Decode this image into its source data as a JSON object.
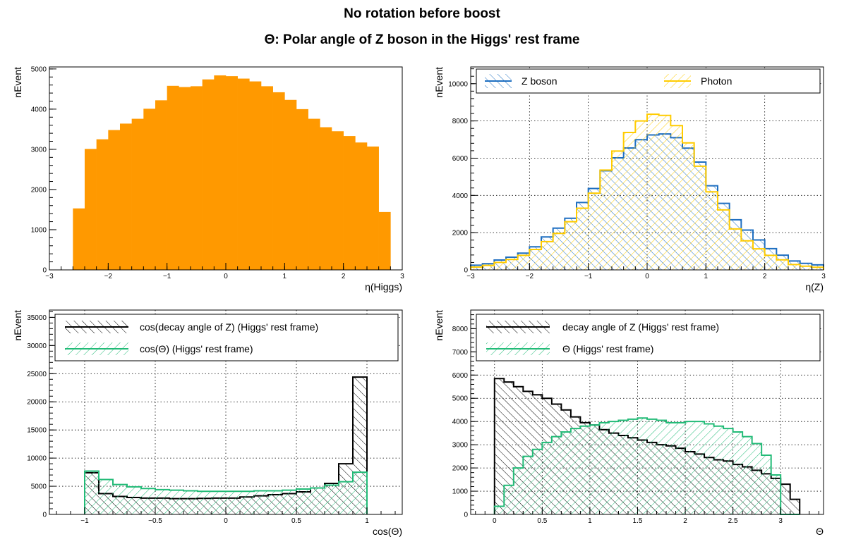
{
  "title": "No rotation before boost",
  "subtitle": "Θ: Polar angle of Z boson in the Higgs' rest frame",
  "chart_data": [
    {
      "type": "histogram",
      "xlabel": "η(Higgs)",
      "ylabel": "nEvent",
      "xlim": [
        -3,
        3
      ],
      "ylim": [
        0,
        5050
      ],
      "xticks": [
        -3,
        -2,
        -1,
        0,
        1,
        2,
        3
      ],
      "yticks": [
        0,
        1000,
        2000,
        3000,
        4000,
        5000
      ],
      "grid": false,
      "series": [
        {
          "color": "#ff9900",
          "style": "filled",
          "edges": [
            -3,
            -2.8,
            -2.6,
            -2.4,
            -2.2,
            -2.0,
            -1.8,
            -1.6,
            -1.4,
            -1.2,
            -1.0,
            -0.8,
            -0.6,
            -0.4,
            -0.2,
            0,
            0.2,
            0.4,
            0.6,
            0.8,
            1.0,
            1.2,
            1.4,
            1.6,
            1.8,
            2.0,
            2.2,
            2.4,
            2.6,
            2.8,
            3.0
          ],
          "values": [
            0,
            0,
            1530,
            3010,
            3250,
            3480,
            3640,
            3760,
            4010,
            4220,
            4580,
            4550,
            4570,
            4740,
            4840,
            4820,
            4760,
            4690,
            4570,
            4420,
            4230,
            4000,
            3760,
            3550,
            3450,
            3330,
            3170,
            3070,
            1440,
            0
          ]
        }
      ]
    },
    {
      "type": "histogram",
      "xlabel": "η(Z)",
      "ylabel": "nEvent",
      "xlim": [
        -3,
        3
      ],
      "ylim": [
        0,
        10900
      ],
      "xticks": [
        -3,
        -2,
        -1,
        0,
        1,
        2,
        3
      ],
      "yticks": [
        0,
        2000,
        4000,
        6000,
        8000,
        10000
      ],
      "grid": true,
      "legend": "top",
      "series": [
        {
          "name": "Z boson",
          "color": "#1f6fc1",
          "edges": [
            -3,
            -2.8,
            -2.6,
            -2.4,
            -2.2,
            -2.0,
            -1.8,
            -1.6,
            -1.4,
            -1.2,
            -1.0,
            -0.8,
            -0.6,
            -0.4,
            -0.2,
            0,
            0.2,
            0.4,
            0.6,
            0.8,
            1.0,
            1.2,
            1.4,
            1.6,
            1.8,
            2.0,
            2.2,
            2.4,
            2.6,
            2.8,
            3.0
          ],
          "values": [
            250,
            330,
            530,
            680,
            900,
            1240,
            1770,
            2240,
            2770,
            3620,
            4370,
            5320,
            6020,
            6550,
            6990,
            7250,
            7300,
            7100,
            6540,
            5790,
            4520,
            3570,
            2690,
            2140,
            1610,
            1140,
            790,
            480,
            350,
            270
          ]
        },
        {
          "name": "Photon",
          "color": "#ffcc00",
          "edges": [
            -3,
            -2.8,
            -2.6,
            -2.4,
            -2.2,
            -2.0,
            -1.8,
            -1.6,
            -1.4,
            -1.2,
            -1.0,
            -0.8,
            -0.6,
            -0.4,
            -0.2,
            0,
            0.2,
            0.4,
            0.6,
            0.8,
            1.0,
            1.2,
            1.4,
            1.6,
            1.8,
            2.0,
            2.2,
            2.4,
            2.6,
            2.8,
            3.0
          ],
          "values": [
            150,
            240,
            400,
            560,
            780,
            1100,
            1520,
            1960,
            2590,
            3310,
            4120,
            5360,
            6380,
            7380,
            8000,
            8360,
            8300,
            7750,
            6820,
            5570,
            4190,
            3220,
            2200,
            1560,
            1130,
            780,
            540,
            290,
            200,
            140
          ]
        }
      ]
    },
    {
      "type": "histogram",
      "xlabel": "cos(Θ)",
      "ylabel": "nEvent",
      "xlim": [
        -1.25,
        1.25
      ],
      "ylim": [
        0,
        36300
      ],
      "xticks": [
        -1,
        -0.5,
        0,
        0.5,
        1
      ],
      "yticks": [
        0,
        5000,
        10000,
        15000,
        20000,
        25000,
        30000,
        35000
      ],
      "grid": true,
      "legend": "top",
      "series": [
        {
          "name": "cos(decay angle of Z) (Higgs' rest frame)",
          "color": "#000000",
          "edges": [
            -1.0,
            -0.9,
            -0.8,
            -0.7,
            -0.6,
            -0.5,
            -0.4,
            -0.3,
            -0.2,
            -0.1,
            0.0,
            0.1,
            0.2,
            0.3,
            0.4,
            0.5,
            0.6,
            0.7,
            0.8,
            0.9,
            1.0
          ],
          "values": [
            7400,
            3700,
            3200,
            3000,
            2900,
            2900,
            2800,
            2800,
            2850,
            2900,
            2900,
            3100,
            3300,
            3500,
            3700,
            4000,
            4700,
            5500,
            9000,
            24400
          ]
        },
        {
          "name": "cos(Θ) (Higgs' rest frame)",
          "color": "#22bb77",
          "edges": [
            -1.0,
            -0.9,
            -0.8,
            -0.7,
            -0.6,
            -0.5,
            -0.4,
            -0.3,
            -0.2,
            -0.1,
            0.0,
            0.1,
            0.2,
            0.3,
            0.4,
            0.5,
            0.6,
            0.7,
            0.8,
            0.9,
            1.0
          ],
          "values": [
            7700,
            6200,
            5300,
            4900,
            4600,
            4400,
            4300,
            4200,
            4100,
            4100,
            4100,
            4100,
            4200,
            4200,
            4300,
            4500,
            4700,
            5200,
            5800,
            7500
          ]
        }
      ]
    },
    {
      "type": "histogram",
      "xlabel": "Θ",
      "ylabel": "nEvent",
      "xlim": [
        -0.25,
        3.45
      ],
      "ylim": [
        0,
        8800
      ],
      "xticks": [
        0,
        0.5,
        1,
        1.5,
        2,
        2.5,
        3
      ],
      "yticks": [
        0,
        1000,
        2000,
        3000,
        4000,
        5000,
        6000,
        7000,
        8000
      ],
      "grid": true,
      "legend": "top",
      "series": [
        {
          "name": "decay angle of Z (Higgs' rest frame)",
          "color": "#000000",
          "edges": [
            0,
            0.1,
            0.2,
            0.3,
            0.4,
            0.5,
            0.6,
            0.7,
            0.8,
            0.9,
            1.0,
            1.1,
            1.2,
            1.3,
            1.4,
            1.5,
            1.6,
            1.7,
            1.8,
            1.9,
            2.0,
            2.1,
            2.2,
            2.3,
            2.4,
            2.5,
            2.6,
            2.7,
            2.8,
            2.9,
            3.0,
            3.1,
            3.2
          ],
          "values": [
            5850,
            5700,
            5500,
            5300,
            5150,
            5000,
            4750,
            4500,
            4200,
            3950,
            3850,
            3650,
            3500,
            3400,
            3300,
            3200,
            3100,
            3000,
            2950,
            2850,
            2700,
            2600,
            2450,
            2350,
            2300,
            2150,
            2050,
            1900,
            1750,
            1550,
            1300,
            650
          ]
        },
        {
          "name": "Θ (Higgs' rest frame)",
          "color": "#22bb77",
          "edges": [
            0,
            0.1,
            0.2,
            0.3,
            0.4,
            0.5,
            0.6,
            0.7,
            0.8,
            0.9,
            1.0,
            1.1,
            1.2,
            1.3,
            1.4,
            1.5,
            1.6,
            1.7,
            1.8,
            1.9,
            2.0,
            2.1,
            2.2,
            2.3,
            2.4,
            2.5,
            2.6,
            2.7,
            2.8,
            2.9,
            3.0,
            3.1,
            3.2
          ],
          "values": [
            350,
            1250,
            2000,
            2500,
            2800,
            3100,
            3350,
            3550,
            3700,
            3800,
            3850,
            3950,
            4000,
            4050,
            4100,
            4150,
            4100,
            4050,
            3950,
            3950,
            4000,
            4000,
            3900,
            3800,
            3700,
            3550,
            3350,
            3050,
            2550,
            1700,
            0,
            0
          ]
        }
      ]
    }
  ]
}
